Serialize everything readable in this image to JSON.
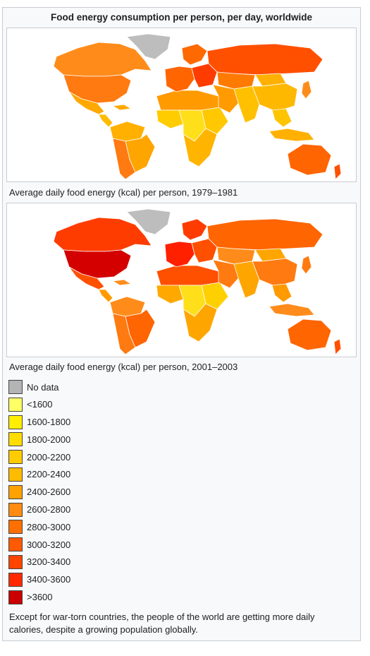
{
  "title": "Food energy consumption per person, per day, worldwide",
  "maps": [
    {
      "caption": "Average daily food energy (kcal) per person, 1979–1981",
      "regions": {
        "canada": "#ff8c1a",
        "usa": "#ff7a10",
        "greenland": "#bdbdbd",
        "mexico": "#ffa800",
        "central_america": "#ffbb00",
        "caribbean": "#ffa800",
        "south_america_north": "#ffb000",
        "brazil": "#ffa500",
        "south_america_south": "#ff7a10",
        "north_africa": "#ff9a00",
        "west_africa": "#ffcc00",
        "central_africa": "#ffdf1a",
        "east_africa": "#ffc800",
        "southern_africa": "#ffb400",
        "western_europe": "#ff6500",
        "eastern_europe": "#ff3c00",
        "scandinavia": "#ff6a00",
        "russia": "#ff5000",
        "middle_east": "#ff9a00",
        "central_asia": "#ff7a00",
        "south_asia": "#ffc000",
        "china": "#ffb800",
        "mongolia": "#ffb000",
        "southeast_asia": "#ffc400",
        "indonesia": "#ffb000",
        "japan": "#ff8c1a",
        "australia": "#ff6500",
        "new_zealand": "#ff5000"
      }
    },
    {
      "caption": "Average daily food energy (kcal) per person, 2001–2003",
      "regions": {
        "canada": "#ff3c00",
        "usa": "#d40000",
        "greenland": "#bdbdbd",
        "mexico": "#ff5000",
        "central_america": "#ff9a00",
        "caribbean": "#ff8c1a",
        "south_america_north": "#ff8c1a",
        "brazil": "#ff6500",
        "south_america_south": "#ff7a10",
        "north_africa": "#ff5000",
        "west_africa": "#ffa800",
        "central_africa": "#ffdf1a",
        "east_africa": "#ffd000",
        "southern_africa": "#ffa500",
        "western_europe": "#ff2000",
        "eastern_europe": "#ff5000",
        "scandinavia": "#ff3c00",
        "russia": "#ff6500",
        "middle_east": "#ff7a10",
        "central_asia": "#ff8c1a",
        "south_asia": "#ffa500",
        "china": "#ff7a10",
        "mongolia": "#ffa500",
        "southeast_asia": "#ff9a00",
        "indonesia": "#ff8c1a",
        "japan": "#ff7a10",
        "australia": "#ff6500",
        "new_zealand": "#ff5000"
      }
    }
  ],
  "legend": [
    {
      "label": "No data",
      "color": "#b4b4b4"
    },
    {
      "label": "<1600",
      "color": "#ffff66"
    },
    {
      "label": "1600-1800",
      "color": "#ffee00"
    },
    {
      "label": "1800-2000",
      "color": "#ffdd00"
    },
    {
      "label": "2000-2200",
      "color": "#ffcc00"
    },
    {
      "label": "2200-2400",
      "color": "#ffbb00"
    },
    {
      "label": "2400-2600",
      "color": "#ffa200"
    },
    {
      "label": "2600-2800",
      "color": "#ff8c10"
    },
    {
      "label": "2800-3000",
      "color": "#ff7000"
    },
    {
      "label": "3000-3200",
      "color": "#ff5a00"
    },
    {
      "label": "3200-3400",
      "color": "#ff4400"
    },
    {
      "label": "3400-3600",
      "color": "#ff2a00"
    },
    {
      "label": ">3600",
      "color": "#cc0000"
    }
  ],
  "note": "Except for war-torn countries, the people of the world are getting more daily calories, despite a growing population globally."
}
